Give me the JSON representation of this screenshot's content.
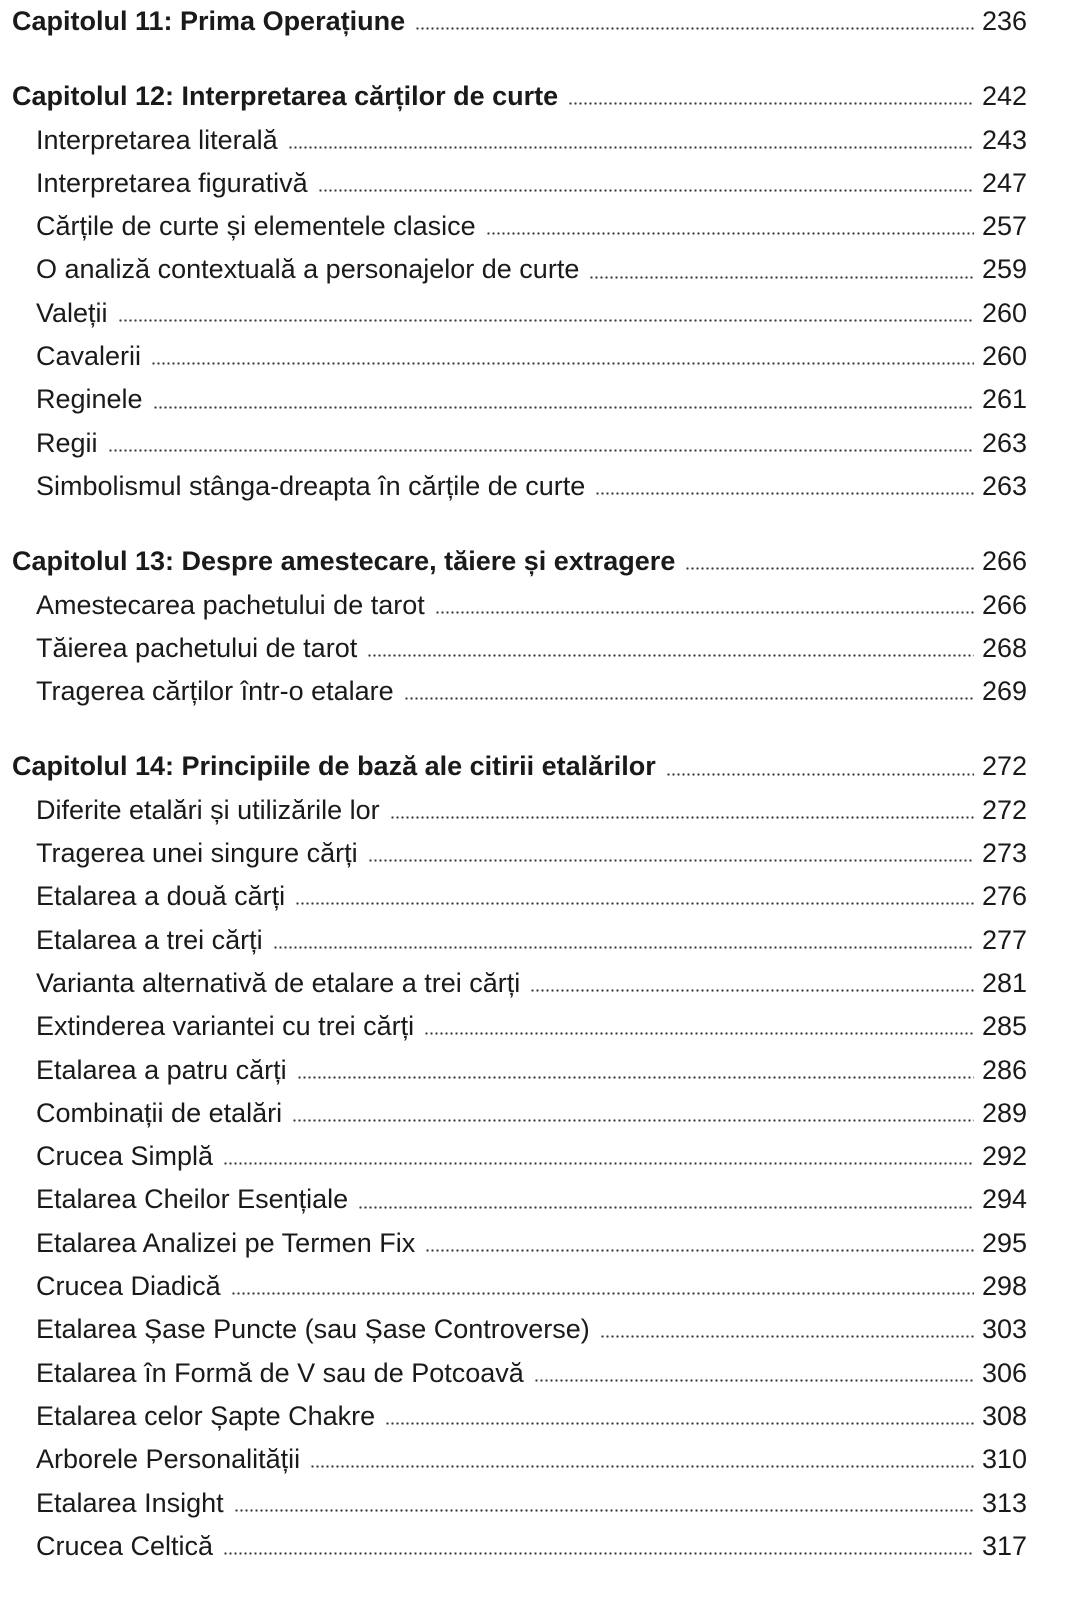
{
  "sections": [
    {
      "title": "Capitolul 11: Prima Operațiune",
      "page": "236",
      "items": []
    },
    {
      "title": "Capitolul 12: Interpretarea cărților de curte",
      "page": "242",
      "items": [
        {
          "label": "Interpretarea literală",
          "page": "243"
        },
        {
          "label": "Interpretarea figurativă",
          "page": "247"
        },
        {
          "label": "Cărțile de curte și elementele clasice",
          "page": "257"
        },
        {
          "label": "O analiză contextuală a personajelor de curte",
          "page": "259"
        },
        {
          "label": "Valeții",
          "page": "260"
        },
        {
          "label": "Cavalerii",
          "page": "260"
        },
        {
          "label": "Reginele",
          "page": "261"
        },
        {
          "label": "Regii",
          "page": "263"
        },
        {
          "label": "Simbolismul stânga-dreapta în cărțile de curte",
          "page": "263"
        }
      ]
    },
    {
      "title": "Capitolul 13: Despre amestecare, tăiere și extragere",
      "page": "266",
      "items": [
        {
          "label": "Amestecarea pachetului de tarot",
          "page": "266"
        },
        {
          "label": "Tăierea pachetului de tarot",
          "page": "268"
        },
        {
          "label": "Tragerea cărților într-o etalare",
          "page": "269"
        }
      ]
    },
    {
      "title": "Capitolul 14: Principiile de bază ale citirii etalărilor",
      "page": "272",
      "items": [
        {
          "label": "Diferite etalări și utilizările lor",
          "page": "272"
        },
        {
          "label": "Tragerea unei singure cărți",
          "page": "273"
        },
        {
          "label": "Etalarea a două cărți",
          "page": "276"
        },
        {
          "label": "Etalarea a trei cărți",
          "page": "277"
        },
        {
          "label": "Varianta alternativă de etalare a trei cărți",
          "page": "281"
        },
        {
          "label": "Extinderea variantei cu trei cărți",
          "page": "285"
        },
        {
          "label": "Etalarea a patru cărți",
          "page": "286"
        },
        {
          "label": "Combinații de etalări",
          "page": "289"
        },
        {
          "label": "Crucea Simplă",
          "page": "292"
        },
        {
          "label": "Etalarea Cheilor Esențiale",
          "page": "294"
        },
        {
          "label": "Etalarea Analizei pe Termen Fix",
          "page": "295"
        },
        {
          "label": "Crucea Diadică",
          "page": "298"
        },
        {
          "label": "Etalarea Șase Puncte (sau Șase Controverse)",
          "page": "303"
        },
        {
          "label": "Etalarea în Formă de V sau de Potcoavă",
          "page": "306"
        },
        {
          "label": "Etalarea celor Șapte Chakre",
          "page": "308"
        },
        {
          "label": "Arborele Personalității",
          "page": "310"
        },
        {
          "label": "Etalarea Insight",
          "page": "313"
        },
        {
          "label": "Crucea Celtică",
          "page": "317"
        }
      ]
    }
  ]
}
